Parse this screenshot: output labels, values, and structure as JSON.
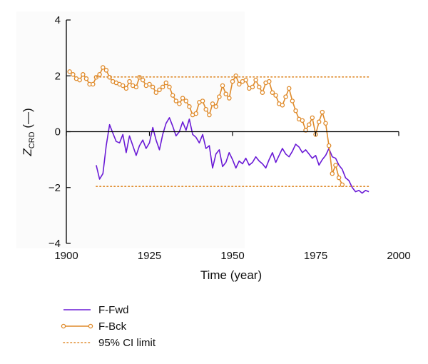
{
  "chart_data": {
    "type": "line",
    "title": "",
    "xlabel": "Time (year)",
    "ylabel": {
      "main": "Z",
      "sub": "CRD",
      "suffix": " (—)"
    },
    "xlim": [
      1900,
      2000
    ],
    "ylim": [
      -4,
      4
    ],
    "xticks": [
      1900,
      1925,
      1950,
      1975,
      2000
    ],
    "yticks": [
      -4,
      -2,
      0,
      2,
      4
    ],
    "grid": false,
    "legend": "bottom-left",
    "series": [
      {
        "name": "F-Fwd",
        "color": "#6a1ad6",
        "style": "solid",
        "x": [
          1909,
          1910,
          1911,
          1912,
          1913,
          1914,
          1915,
          1916,
          1917,
          1918,
          1919,
          1920,
          1921,
          1922,
          1923,
          1924,
          1925,
          1926,
          1927,
          1928,
          1929,
          1930,
          1931,
          1932,
          1933,
          1934,
          1935,
          1936,
          1937,
          1938,
          1939,
          1940,
          1941,
          1942,
          1943,
          1944,
          1945,
          1946,
          1947,
          1948,
          1949,
          1950,
          1951,
          1952,
          1953,
          1954,
          1955,
          1956,
          1957,
          1958,
          1959,
          1960,
          1961,
          1962,
          1963,
          1964,
          1965,
          1966,
          1967,
          1968,
          1969,
          1970,
          1971,
          1972,
          1973,
          1974,
          1975,
          1976,
          1977,
          1978,
          1979,
          1980,
          1981,
          1982,
          1983,
          1984,
          1985,
          1986,
          1987,
          1988,
          1989,
          1990,
          1991
        ],
        "y": [
          -1.2,
          -1.7,
          -1.5,
          -0.5,
          0.25,
          -0.05,
          -0.35,
          -0.4,
          -0.1,
          -0.75,
          -0.15,
          -0.5,
          -0.85,
          -0.5,
          -0.3,
          -0.6,
          -0.4,
          0.15,
          -0.3,
          -0.65,
          -0.1,
          0.3,
          0.5,
          0.2,
          -0.15,
          0.0,
          0.35,
          0.05,
          0.45,
          -0.1,
          -0.2,
          -0.4,
          -0.1,
          -0.6,
          -0.5,
          -1.3,
          -0.8,
          -0.65,
          -1.25,
          -1.1,
          -0.75,
          -1.0,
          -1.3,
          -1.05,
          -1.15,
          -0.95,
          -1.2,
          -1.1,
          -0.9,
          -1.05,
          -1.15,
          -1.3,
          -1.0,
          -0.75,
          -1.1,
          -0.85,
          -0.6,
          -0.8,
          -0.9,
          -0.7,
          -0.45,
          -0.55,
          -0.75,
          -0.65,
          -0.8,
          -0.95,
          -0.85,
          -1.2,
          -1.0,
          -0.85,
          -0.6,
          -0.9,
          -0.95,
          -1.2,
          -1.35,
          -1.65,
          -1.75,
          -2.0,
          -2.15,
          -2.1,
          -2.2,
          -2.1,
          -2.15
        ]
      },
      {
        "name": "F-Bck",
        "color": "#df8a2a",
        "style": "solid-markers",
        "x": [
          1901,
          1902,
          1903,
          1904,
          1905,
          1906,
          1907,
          1908,
          1909,
          1910,
          1911,
          1912,
          1913,
          1914,
          1915,
          1916,
          1917,
          1918,
          1919,
          1920,
          1921,
          1922,
          1923,
          1924,
          1925,
          1926,
          1927,
          1928,
          1929,
          1930,
          1931,
          1932,
          1933,
          1934,
          1935,
          1936,
          1937,
          1938,
          1939,
          1940,
          1941,
          1942,
          1943,
          1944,
          1945,
          1946,
          1947,
          1948,
          1949,
          1950,
          1951,
          1952,
          1953,
          1954,
          1955,
          1956,
          1957,
          1958,
          1959,
          1960,
          1961,
          1962,
          1963,
          1964,
          1965,
          1966,
          1967,
          1968,
          1969,
          1970,
          1971,
          1972,
          1973,
          1974,
          1975,
          1976,
          1977,
          1978,
          1979,
          1980,
          1981,
          1982,
          1983
        ],
        "y": [
          2.15,
          2.05,
          1.9,
          1.85,
          2.05,
          1.9,
          1.7,
          1.7,
          1.95,
          2.05,
          2.3,
          2.2,
          1.95,
          1.8,
          1.75,
          1.7,
          1.65,
          1.55,
          1.8,
          1.65,
          1.6,
          1.95,
          1.85,
          1.65,
          1.7,
          1.6,
          1.4,
          1.5,
          1.6,
          1.75,
          1.6,
          1.3,
          1.1,
          1.0,
          1.2,
          1.1,
          0.9,
          0.6,
          0.65,
          1.05,
          1.1,
          0.8,
          0.6,
          1.0,
          0.9,
          1.25,
          1.65,
          1.35,
          1.2,
          1.8,
          2.0,
          1.7,
          1.8,
          1.85,
          1.55,
          1.6,
          1.85,
          1.6,
          1.4,
          1.75,
          1.8,
          1.4,
          1.3,
          1.0,
          0.95,
          1.25,
          1.55,
          1.1,
          0.75,
          0.45,
          0.4,
          0.05,
          0.25,
          0.5,
          -0.1,
          0.35,
          0.7,
          0.3,
          -0.5,
          -1.5,
          -1.2,
          -1.65,
          -1.9
        ]
      },
      {
        "name": "95% CI limit",
        "color": "#df8a2a",
        "style": "dotted",
        "segments": [
          {
            "x": [
              1909,
              1991
            ],
            "y": [
              1.96,
              1.96
            ]
          },
          {
            "x": [
              1909,
              1991
            ],
            "y": [
              -1.96,
              -1.96
            ]
          }
        ]
      }
    ]
  }
}
